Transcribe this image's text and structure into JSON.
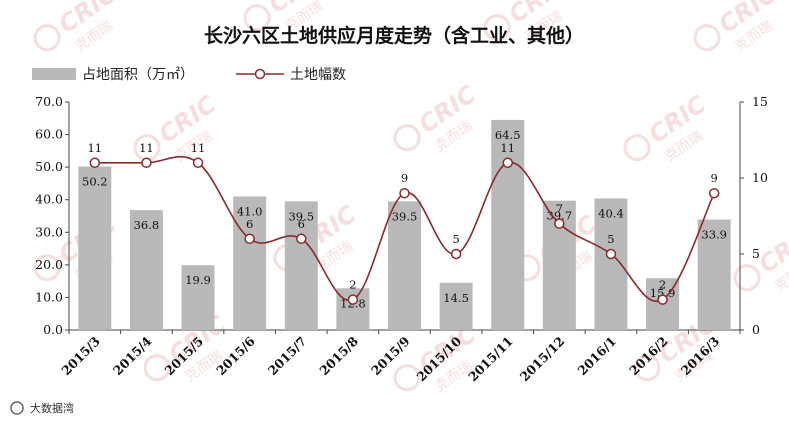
{
  "chart_data": {
    "type": "bar",
    "title": "长沙六区土地供应月度走势（含工业、其他）",
    "categories": [
      "2015/3",
      "2015/4",
      "2015/5",
      "2015/6",
      "2015/7",
      "2015/8",
      "2015/9",
      "2015/10",
      "2015/11",
      "2015/12",
      "2016/1",
      "2016/2",
      "2016/3"
    ],
    "series": [
      {
        "name": "占地面积（万㎡）",
        "type": "bar",
        "axis": "left",
        "color": "#b9b9b9",
        "values": [
          50.2,
          36.8,
          19.9,
          41.0,
          39.5,
          12.8,
          39.5,
          14.5,
          64.5,
          39.7,
          40.4,
          15.9,
          33.9
        ]
      },
      {
        "name": "土地幅数",
        "type": "line",
        "axis": "right",
        "color": "#8b2a2a",
        "values": [
          11,
          11,
          11,
          6,
          6,
          2,
          9,
          5,
          11,
          7,
          5,
          2,
          9
        ]
      }
    ],
    "bar_label_text": [
      "50.2",
      "36.8",
      "19.9",
      "41.0",
      "39.5",
      "12.8",
      "39.5",
      "14.5",
      "64.5",
      "39.7",
      "40.4",
      "15.9",
      "33.9"
    ],
    "y_left": {
      "min": 0,
      "max": 70,
      "step": 10,
      "tick_labels": [
        "0.0",
        "10.0",
        "20.0",
        "30.0",
        "40.0",
        "50.0",
        "60.0",
        "70.0"
      ]
    },
    "y_right": {
      "min": 0,
      "max": 15,
      "step": 5,
      "tick_labels": [
        "0",
        "5",
        "10",
        "15"
      ]
    },
    "xlabel": "",
    "ylabel": "",
    "grid": false,
    "legend_position": "top-left"
  },
  "watermark": {
    "brand_text": "CRIC",
    "brand_cn": "克而瑞",
    "footer_text": "大数据湾",
    "color": "#e8a2a2"
  }
}
